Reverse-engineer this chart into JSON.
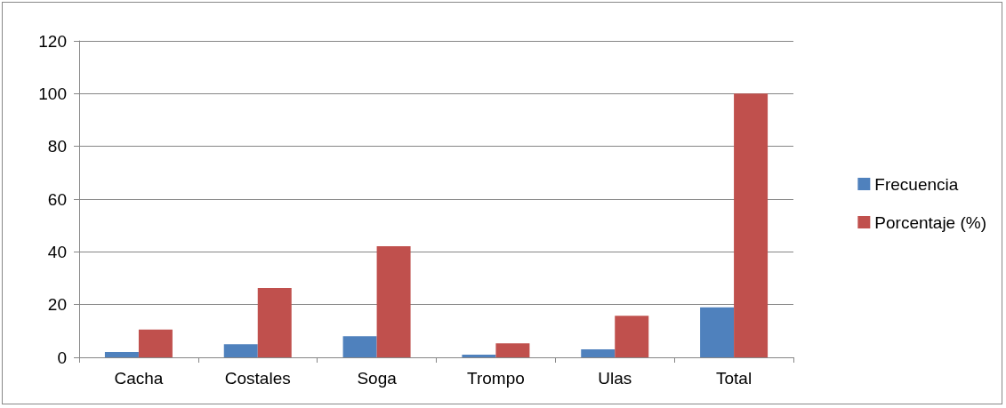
{
  "chart_data": {
    "type": "bar",
    "categories": [
      "Cacha",
      "Costales",
      "Soga",
      "Trompo",
      "Ulas",
      "Total"
    ],
    "series": [
      {
        "name": "Frecuencia",
        "color": "#4f81bd",
        "values": [
          2,
          5,
          8,
          1,
          3,
          19
        ]
      },
      {
        "name": "Porcentaje (%)",
        "color": "#c0504d",
        "values": [
          10.5,
          26.3,
          42.1,
          5.3,
          15.8,
          100
        ]
      }
    ],
    "ylim": [
      0,
      120
    ],
    "yticks": [
      0,
      20,
      40,
      60,
      80,
      100,
      120
    ],
    "grid": "y",
    "legend": "right"
  }
}
